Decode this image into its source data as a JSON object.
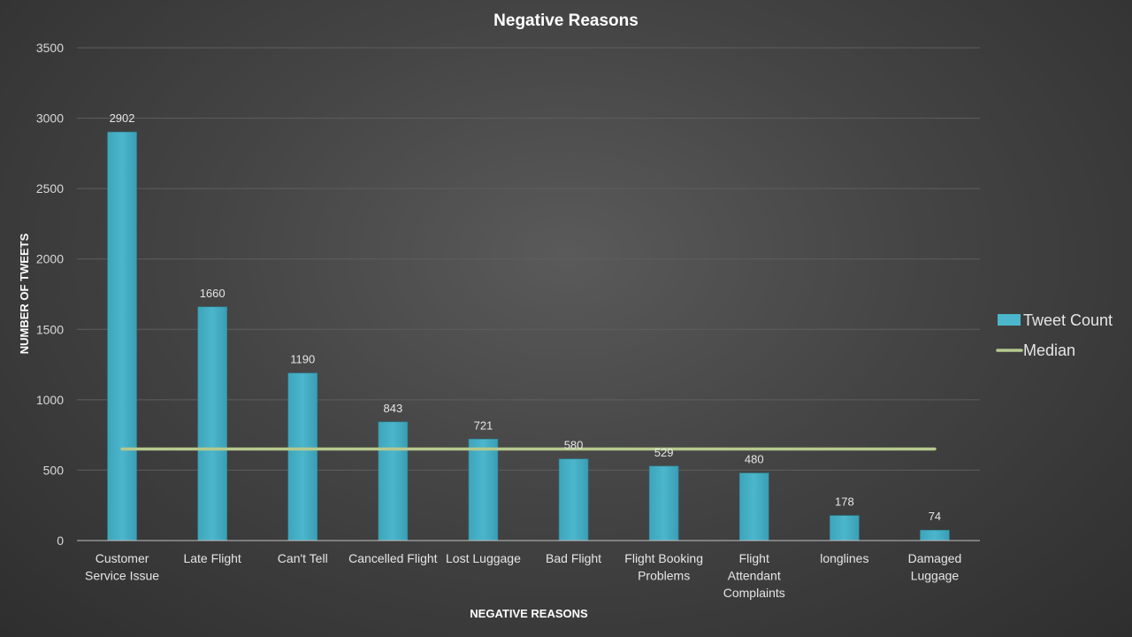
{
  "chart_data": {
    "type": "bar",
    "title": "Negative Reasons",
    "xlabel": "NEGATIVE REASONS",
    "ylabel": "NUMBER OF TWEETS",
    "categories": [
      "Customer Service Issue",
      "Late Flight",
      "Can't Tell",
      "Cancelled Flight",
      "Lost Luggage",
      "Bad Flight",
      "Flight Booking Problems",
      "Flight Attendant Complaints",
      "longlines",
      "Damaged Luggage"
    ],
    "category_label_lines": [
      [
        "Customer",
        "Service Issue"
      ],
      [
        "Late Flight"
      ],
      [
        "Can't Tell"
      ],
      [
        "Cancelled Flight"
      ],
      [
        "Lost Luggage"
      ],
      [
        "Bad Flight"
      ],
      [
        "Flight Booking",
        "Problems"
      ],
      [
        "Flight",
        "Attendant",
        "Complaints"
      ],
      [
        "longlines"
      ],
      [
        "Damaged",
        "Luggage"
      ]
    ],
    "series": [
      {
        "name": "Tweet Count",
        "kind": "bar",
        "color": "#4bb6cc",
        "values": [
          2902,
          1660,
          1190,
          843,
          721,
          580,
          529,
          480,
          178,
          74
        ]
      },
      {
        "name": "Median",
        "kind": "line",
        "color": "#b5c98e",
        "values": [
          650.5,
          650.5,
          650.5,
          650.5,
          650.5,
          650.5,
          650.5,
          650.5,
          650.5,
          650.5
        ]
      }
    ],
    "ylim": [
      0,
      3500
    ],
    "yticks": [
      "0",
      "500",
      "1000",
      "1500",
      "2000",
      "2500",
      "3000",
      "3500"
    ],
    "grid": true,
    "legend_position": "right"
  }
}
